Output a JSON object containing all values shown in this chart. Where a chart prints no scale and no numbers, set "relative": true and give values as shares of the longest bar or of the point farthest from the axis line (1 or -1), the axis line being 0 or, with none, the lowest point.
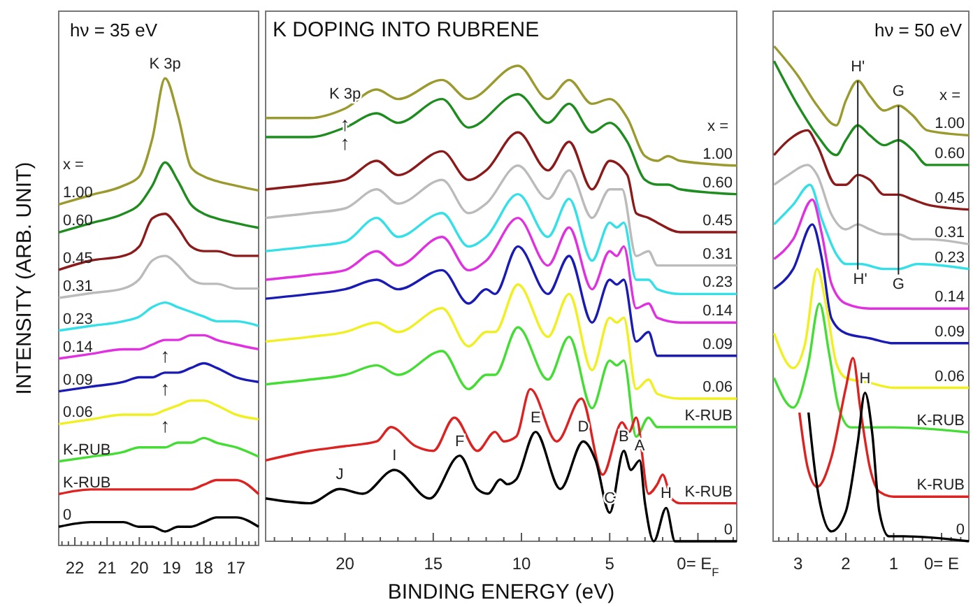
{
  "chart_data": [
    {
      "type": "line",
      "relative": true,
      "title": "hν = 35 eV",
      "ylabel": "INTENSITY (ARB. UNIT)",
      "xlim": [
        22.5,
        16.3
      ],
      "xticks": [
        {
          "value": 22.4,
          "label": null
        },
        {
          "value": 22.2,
          "label": null
        },
        22,
        {
          "value": 21.8,
          "label": null
        },
        {
          "value": 21.6,
          "label": null
        },
        {
          "value": 21.4,
          "label": null
        },
        {
          "value": 21.2,
          "label": null
        },
        21,
        {
          "value": 20.8,
          "label": null
        },
        {
          "value": 20.6,
          "label": null
        },
        {
          "value": 20.4,
          "label": null
        },
        {
          "value": 20.2,
          "label": null
        },
        20,
        {
          "value": 19.8,
          "label": null
        },
        {
          "value": 19.6,
          "label": null
        },
        {
          "value": 19.4,
          "label": null
        },
        {
          "value": 19.2,
          "label": null
        },
        19,
        {
          "value": 18.8,
          "label": null
        },
        {
          "value": 18.6,
          "label": null
        },
        {
          "value": 18.4,
          "label": null
        },
        {
          "value": 18.2,
          "label": null
        },
        18,
        {
          "value": 17.8,
          "label": null
        },
        {
          "value": 17.6,
          "label": null
        },
        {
          "value": 17.4,
          "label": null
        },
        {
          "value": 17.2,
          "label": null
        },
        17,
        {
          "value": 16.8,
          "label": null
        },
        {
          "value": 16.6,
          "label": null
        },
        {
          "value": 16.4,
          "label": null
        }
      ],
      "annotations": [
        "x =",
        {
          "text": "K 3p",
          "x": 19.2,
          "y": 1.0
        },
        {
          "text": "↑",
          "x": 19.2,
          "y": 0.44
        },
        {
          "text": "↑",
          "x": 19.2,
          "y": 0.37
        },
        {
          "text": "↑",
          "x": 19.2,
          "y": 0.29
        }
      ],
      "series": [
        {
          "name": "1.00",
          "color": "#9a9a2e",
          "x": [
            22.5,
            21.5,
            20.5,
            20.0,
            19.6,
            19.2,
            18.8,
            18.4,
            18.0,
            17.6,
            17.0,
            16.3
          ],
          "values": [
            0.73,
            0.75,
            0.77,
            0.79,
            0.87,
            1.0,
            0.92,
            0.81,
            0.79,
            0.78,
            0.77,
            0.76
          ]
        },
        {
          "name": "0.60",
          "color": "#1e8c1e",
          "x": [
            22.5,
            21.5,
            20.5,
            20.0,
            19.6,
            19.2,
            18.8,
            18.4,
            18.0,
            17.6,
            17.0,
            16.3
          ],
          "values": [
            0.67,
            0.69,
            0.71,
            0.73,
            0.77,
            0.82,
            0.78,
            0.73,
            0.71,
            0.7,
            0.69,
            0.68
          ]
        },
        {
          "name": "0.45",
          "color": "#8b1a1a",
          "x": [
            22.5,
            21.5,
            20.5,
            20.0,
            19.6,
            19.2,
            18.8,
            18.4,
            18.0,
            17.6,
            17.0,
            16.3
          ],
          "values": [
            0.59,
            0.61,
            0.62,
            0.64,
            0.7,
            0.71,
            0.68,
            0.64,
            0.63,
            0.63,
            0.62,
            0.62
          ]
        },
        {
          "name": "0.31",
          "color": "#bbbbbb",
          "x": [
            22.5,
            21.5,
            20.5,
            20.0,
            19.6,
            19.2,
            18.8,
            18.4,
            18.0,
            17.6,
            17.0,
            16.3
          ],
          "values": [
            0.53,
            0.54,
            0.55,
            0.57,
            0.61,
            0.62,
            0.6,
            0.57,
            0.56,
            0.56,
            0.55,
            0.55
          ]
        },
        {
          "name": "0.23",
          "color": "#33e0e8",
          "x": [
            22.5,
            21.5,
            20.5,
            20.0,
            19.6,
            19.2,
            18.8,
            18.4,
            18.0,
            17.6,
            17.0,
            16.3
          ],
          "values": [
            0.46,
            0.47,
            0.48,
            0.49,
            0.51,
            0.52,
            0.51,
            0.5,
            0.49,
            0.48,
            0.48,
            0.47
          ]
        },
        {
          "name": "0.14",
          "color": "#e030e0",
          "x": [
            22.5,
            21.5,
            20.5,
            20.0,
            19.6,
            19.2,
            18.8,
            18.4,
            18.0,
            17.6,
            17.0,
            16.3
          ],
          "values": [
            0.4,
            0.41,
            0.42,
            0.42,
            0.43,
            0.44,
            0.44,
            0.45,
            0.45,
            0.44,
            0.43,
            0.42
          ]
        },
        {
          "name": "0.09",
          "color": "#1a1ab4",
          "x": [
            22.5,
            21.5,
            20.5,
            20.0,
            19.6,
            19.2,
            18.8,
            18.4,
            18.0,
            17.6,
            17.0,
            16.3
          ],
          "values": [
            0.33,
            0.34,
            0.35,
            0.36,
            0.36,
            0.37,
            0.37,
            0.38,
            0.39,
            0.38,
            0.36,
            0.35
          ]
        },
        {
          "name": "0.06",
          "color": "#f0f020",
          "x": [
            22.5,
            21.5,
            20.5,
            20.0,
            19.6,
            19.2,
            18.8,
            18.4,
            18.0,
            17.6,
            17.0,
            16.3
          ],
          "values": [
            0.26,
            0.27,
            0.28,
            0.28,
            0.28,
            0.29,
            0.3,
            0.31,
            0.31,
            0.3,
            0.28,
            0.27
          ]
        },
        {
          "name": "K-RUB",
          "color": "#44dd33",
          "x": [
            22.5,
            21.5,
            20.5,
            20.0,
            19.6,
            19.2,
            18.8,
            18.4,
            18.0,
            17.6,
            17.0,
            16.3
          ],
          "values": [
            0.18,
            0.19,
            0.2,
            0.21,
            0.21,
            0.21,
            0.22,
            0.22,
            0.23,
            0.22,
            0.21,
            0.19
          ]
        },
        {
          "name": "K-RUB",
          "color": "#dd2222",
          "x": [
            22.5,
            21.5,
            20.5,
            20.0,
            19.6,
            19.2,
            18.8,
            18.4,
            18.0,
            17.6,
            17.0,
            16.3
          ],
          "values": [
            0.11,
            0.12,
            0.12,
            0.12,
            0.12,
            0.12,
            0.12,
            0.12,
            0.13,
            0.14,
            0.14,
            0.11
          ]
        },
        {
          "name": "0",
          "color": "#000000",
          "x": [
            22.5,
            21.5,
            20.5,
            20.0,
            19.6,
            19.2,
            18.8,
            18.4,
            18.0,
            17.6,
            17.0,
            16.3
          ],
          "values": [
            0.04,
            0.05,
            0.05,
            0.04,
            0.04,
            0.03,
            0.04,
            0.04,
            0.05,
            0.06,
            0.06,
            0.04
          ]
        }
      ]
    },
    {
      "type": "line",
      "relative": true,
      "title": "K DOPING INTO RUBRENE",
      "xlabel": "BINDING ENERGY (eV)",
      "xlim": [
        24.5,
        -2.2
      ],
      "xticks": [
        {
          "value": 24,
          "label": null
        },
        {
          "value": 23,
          "label": null
        },
        {
          "value": 22,
          "label": null
        },
        {
          "value": 21,
          "label": null
        },
        20,
        {
          "value": 19,
          "label": null
        },
        {
          "value": 18,
          "label": null
        },
        {
          "value": 17,
          "label": null
        },
        {
          "value": 16,
          "label": null
        },
        15,
        {
          "value": 14,
          "label": null
        },
        {
          "value": 13,
          "label": null
        },
        {
          "value": 12,
          "label": null
        },
        {
          "value": 11,
          "label": null
        },
        10,
        {
          "value": 9,
          "label": null
        },
        {
          "value": 8,
          "label": null
        },
        {
          "value": 7,
          "label": null
        },
        {
          "value": 6,
          "label": null
        },
        5,
        {
          "value": 4,
          "label": null
        },
        {
          "value": 3,
          "label": null
        },
        {
          "value": 2,
          "label": null
        },
        {
          "value": 1,
          "label": null
        },
        {
          "value": 0,
          "label": "0= E$_{F}$"
        },
        {
          "value": -1,
          "label": null
        },
        {
          "value": -2,
          "label": null
        }
      ],
      "annotations": [
        "x =",
        {
          "text": "K 3p",
          "x": 20,
          "y": 0.91
        },
        {
          "text": "↑",
          "x": 20,
          "y": 0.91
        },
        {
          "text": "↑",
          "x": 20,
          "y": 0.87
        },
        {
          "text": "J",
          "x": 20.3,
          "y": 0.11
        },
        {
          "text": "I",
          "x": 17.2,
          "y": 0.15
        },
        {
          "text": "F",
          "x": 13.5,
          "y": 0.18
        },
        {
          "text": "E",
          "x": 9.2,
          "y": 0.23
        },
        {
          "text": "D",
          "x": 6.5,
          "y": 0.21
        },
        {
          "text": "C",
          "x": 5.0,
          "y": 0.06
        },
        {
          "text": "B",
          "x": 4.2,
          "y": 0.19
        },
        {
          "text": "A",
          "x": 3.3,
          "y": 0.17
        },
        {
          "text": "H",
          "x": 1.8,
          "y": 0.07
        }
      ],
      "series": [
        {
          "name": "1.00",
          "color": "#9a9a2e",
          "x": [
            24.5,
            22,
            20,
            18.2,
            17,
            14.5,
            13,
            10.2,
            8.5,
            7.3,
            6,
            5,
            4,
            3,
            2.3,
            1.7,
            1,
            -2.2
          ],
          "values": [
            0.89,
            0.89,
            0.91,
            0.95,
            0.93,
            0.97,
            0.93,
            1.0,
            0.93,
            0.97,
            0.92,
            0.93,
            0.89,
            0.81,
            0.8,
            0.81,
            0.8,
            0.79
          ]
        },
        {
          "name": "0.60",
          "color": "#1e8c1e",
          "x": [
            24.5,
            22,
            20,
            18.2,
            17,
            14.5,
            13,
            10.2,
            8.5,
            7.3,
            6,
            5,
            4,
            3,
            2.3,
            1.7,
            1,
            -2.2
          ],
          "values": [
            0.85,
            0.85,
            0.87,
            0.9,
            0.88,
            0.93,
            0.87,
            0.94,
            0.88,
            0.92,
            0.86,
            0.88,
            0.84,
            0.76,
            0.75,
            0.75,
            0.74,
            0.73
          ]
        },
        {
          "name": "0.45",
          "color": "#8b1a1a",
          "x": [
            24.5,
            22,
            20,
            18.2,
            17,
            14.5,
            13,
            12,
            10.2,
            8.5,
            7.3,
            6,
            5,
            4,
            3.5,
            2.8,
            2.3,
            1,
            -2.2
          ],
          "values": [
            0.74,
            0.75,
            0.76,
            0.8,
            0.77,
            0.82,
            0.76,
            0.78,
            0.86,
            0.78,
            0.84,
            0.74,
            0.8,
            0.77,
            0.69,
            0.68,
            0.67,
            0.65,
            0.65
          ]
        },
        {
          "name": "0.31",
          "color": "#bbbbbb",
          "x": [
            24.5,
            22,
            20,
            18.2,
            17,
            14.5,
            13,
            12,
            10.2,
            8.5,
            7.3,
            6,
            5,
            4.3,
            3.5,
            2.8,
            2.3,
            1,
            -2.2
          ],
          "values": [
            0.68,
            0.69,
            0.7,
            0.74,
            0.71,
            0.76,
            0.69,
            0.71,
            0.79,
            0.72,
            0.78,
            0.68,
            0.74,
            0.74,
            0.6,
            0.61,
            0.58,
            0.58,
            0.58
          ]
        },
        {
          "name": "0.23",
          "color": "#33e0e8",
          "x": [
            24.5,
            22,
            20,
            18.2,
            17,
            14.5,
            13,
            12,
            10.2,
            8.5,
            7.3,
            6,
            5,
            4.6,
            4.2,
            3.5,
            2.8,
            2.3,
            1,
            -2.2
          ],
          "values": [
            0.61,
            0.62,
            0.63,
            0.68,
            0.64,
            0.69,
            0.62,
            0.64,
            0.73,
            0.64,
            0.72,
            0.59,
            0.67,
            0.66,
            0.67,
            0.55,
            0.55,
            0.53,
            0.52,
            0.52
          ]
        },
        {
          "name": "0.14",
          "color": "#e030e0",
          "x": [
            24.5,
            22,
            20,
            18.2,
            17,
            14.5,
            13,
            12,
            10.2,
            8.5,
            7.3,
            6,
            5,
            4.6,
            4.2,
            3.5,
            2.8,
            2.3,
            1,
            -2.2
          ],
          "values": [
            0.55,
            0.56,
            0.57,
            0.61,
            0.58,
            0.64,
            0.57,
            0.59,
            0.68,
            0.58,
            0.66,
            0.53,
            0.61,
            0.6,
            0.62,
            0.49,
            0.5,
            0.47,
            0.46,
            0.46
          ]
        },
        {
          "name": "0.09",
          "color": "#1a1ab4",
          "x": [
            24.5,
            22,
            20,
            18.2,
            17,
            14.5,
            13,
            12,
            11.5,
            10.2,
            8.5,
            7.3,
            6,
            5,
            4.6,
            4.2,
            3.5,
            2.8,
            2.3,
            1,
            -2.2
          ],
          "values": [
            0.51,
            0.52,
            0.53,
            0.55,
            0.53,
            0.57,
            0.5,
            0.53,
            0.52,
            0.62,
            0.52,
            0.6,
            0.46,
            0.55,
            0.54,
            0.55,
            0.42,
            0.44,
            0.39,
            0.39,
            0.39
          ]
        },
        {
          "name": "0.06",
          "color": "#f0f020",
          "x": [
            24.5,
            22,
            20,
            18.2,
            17,
            14.5,
            13,
            12,
            11.5,
            10.2,
            8.5,
            7.3,
            6,
            5,
            4.6,
            4.2,
            3.5,
            2.8,
            2.3,
            1,
            -2.2
          ],
          "values": [
            0.42,
            0.43,
            0.44,
            0.46,
            0.44,
            0.49,
            0.41,
            0.44,
            0.44,
            0.54,
            0.43,
            0.52,
            0.36,
            0.47,
            0.46,
            0.47,
            0.32,
            0.34,
            0.31,
            0.3,
            0.3
          ]
        },
        {
          "name": "K-RUB",
          "color": "#44dd33",
          "x": [
            24.5,
            22,
            20,
            18.2,
            17,
            14.5,
            13,
            12,
            11.5,
            10.2,
            8.5,
            7.3,
            6,
            5,
            4.6,
            4.2,
            3.5,
            2.8,
            2.3,
            1,
            -2.2
          ],
          "values": [
            0.33,
            0.34,
            0.35,
            0.37,
            0.35,
            0.4,
            0.32,
            0.35,
            0.35,
            0.45,
            0.34,
            0.43,
            0.28,
            0.38,
            0.37,
            0.38,
            0.22,
            0.26,
            0.24,
            0.24,
            0.24
          ]
        },
        {
          "name": "K-RUB",
          "color": "#dd2222",
          "x": [
            24.5,
            22,
            20,
            18.2,
            17.4,
            16,
            15,
            13.8,
            12.5,
            11.5,
            11,
            10.3,
            9.5,
            8,
            6.6,
            5.4,
            4.3,
            3.9,
            3.5,
            2.8,
            2.3,
            2.0,
            1.5,
            1,
            -2.2
          ],
          "values": [
            0.17,
            0.19,
            0.2,
            0.21,
            0.24,
            0.2,
            0.19,
            0.26,
            0.19,
            0.23,
            0.21,
            0.22,
            0.32,
            0.21,
            0.3,
            0.14,
            0.25,
            0.23,
            0.26,
            0.1,
            0.12,
            0.14,
            0.09,
            0.08,
            0.08
          ]
        },
        {
          "name": "0",
          "color": "#000000",
          "x": [
            24.5,
            22,
            20.3,
            19,
            17.2,
            15.2,
            13.5,
            12.5,
            11.9,
            11.2,
            10.8,
            10.3,
            9.2,
            7.8,
            6.5,
            5.8,
            5.0,
            4.2,
            3.8,
            3.3,
            3.0,
            2.5,
            1.8,
            1.3,
            1,
            -2.2
          ],
          "values": [
            0.09,
            0.08,
            0.11,
            0.1,
            0.15,
            0.09,
            0.18,
            0.11,
            0.1,
            0.13,
            0.12,
            0.13,
            0.23,
            0.11,
            0.21,
            0.17,
            0.06,
            0.19,
            0.15,
            0.17,
            0.08,
            0.0,
            0.07,
            0.0,
            0.0,
            0.0
          ]
        }
      ]
    },
    {
      "type": "line",
      "relative": true,
      "title": "hν = 50 eV",
      "xlim": [
        3.52,
        -0.57
      ],
      "xticks": [
        {
          "value": 3.4,
          "label": null
        },
        {
          "value": 3.2,
          "label": null
        },
        3,
        {
          "value": 2.8,
          "label": null
        },
        {
          "value": 2.6,
          "label": null
        },
        {
          "value": 2.4,
          "label": null
        },
        {
          "value": 2.2,
          "label": null
        },
        2,
        {
          "value": 1.8,
          "label": null
        },
        {
          "value": 1.6,
          "label": null
        },
        {
          "value": 1.4,
          "label": null
        },
        {
          "value": 1.2,
          "label": null
        },
        1,
        {
          "value": 0.8,
          "label": null
        },
        {
          "value": 0.6,
          "label": null
        },
        {
          "value": 0.4,
          "label": null
        },
        {
          "value": 0.2,
          "label": null
        },
        {
          "value": 0,
          "label": "0= E"
        },
        {
          "value": -0.2,
          "label": null
        },
        {
          "value": -0.4,
          "label": null
        }
      ],
      "annotations": [
        "x =",
        {
          "text": "H'",
          "x": 1.75,
          "y": 0.93
        },
        {
          "text": "G",
          "x": 0.9,
          "y": 0.88
        },
        {
          "text": "H'",
          "x": 1.7,
          "y": 0.56
        },
        {
          "text": "G",
          "x": 0.9,
          "y": 0.55
        },
        {
          "text": "H",
          "x": 1.6,
          "y": 0.3
        }
      ],
      "series": [
        {
          "name": "1.00",
          "color": "#9a9a2e",
          "x": [
            3.5,
            3.0,
            2.6,
            2.2,
            2.0,
            1.75,
            1.5,
            1.2,
            0.9,
            0.6,
            0.3,
            -0.57
          ],
          "values": [
            1.0,
            0.94,
            0.88,
            0.84,
            0.89,
            0.93,
            0.9,
            0.87,
            0.88,
            0.86,
            0.83,
            0.82
          ]
        },
        {
          "name": "0.60",
          "color": "#1e8c1e",
          "x": [
            3.5,
            3.0,
            2.6,
            2.2,
            2.0,
            1.75,
            1.5,
            1.2,
            0.9,
            0.6,
            0.3,
            -0.57
          ],
          "values": [
            0.97,
            0.88,
            0.82,
            0.78,
            0.81,
            0.84,
            0.82,
            0.8,
            0.81,
            0.79,
            0.76,
            0.76
          ]
        },
        {
          "name": "0.45",
          "color": "#8b1a1a",
          "x": [
            3.5,
            3.2,
            2.8,
            2.6,
            2.2,
            2.0,
            1.75,
            1.5,
            1.2,
            0.9,
            0.6,
            0.3,
            -0.57
          ],
          "values": [
            0.78,
            0.81,
            0.83,
            0.8,
            0.72,
            0.72,
            0.74,
            0.73,
            0.7,
            0.7,
            0.69,
            0.68,
            0.67
          ]
        },
        {
          "name": "0.31",
          "color": "#bbbbbb",
          "x": [
            3.5,
            3.2,
            2.8,
            2.6,
            2.3,
            2.0,
            1.75,
            1.5,
            1.2,
            0.9,
            0.6,
            0.3,
            -0.57
          ],
          "values": [
            0.72,
            0.74,
            0.76,
            0.74,
            0.66,
            0.63,
            0.64,
            0.63,
            0.62,
            0.62,
            0.61,
            0.61,
            0.6
          ]
        },
        {
          "name": "0.23",
          "color": "#33e0e8",
          "x": [
            3.5,
            3.1,
            2.75,
            2.5,
            2.2,
            2.0,
            1.7,
            1.2,
            0.9,
            0.5,
            -0.57
          ],
          "values": [
            0.64,
            0.68,
            0.72,
            0.65,
            0.58,
            0.56,
            0.56,
            0.55,
            0.55,
            0.56,
            0.55
          ]
        },
        {
          "name": "0.14",
          "color": "#e030e0",
          "x": [
            3.5,
            3.1,
            2.7,
            2.5,
            2.3,
            2.0,
            1.5,
            1.0,
            0.5,
            -0.57
          ],
          "values": [
            0.57,
            0.61,
            0.69,
            0.62,
            0.52,
            0.48,
            0.47,
            0.47,
            0.47,
            0.47
          ]
        },
        {
          "name": "0.09",
          "color": "#1a1ab4",
          "x": [
            3.5,
            3.1,
            2.7,
            2.5,
            2.3,
            2.0,
            1.5,
            1.0,
            0.5,
            -0.57
          ],
          "values": [
            0.51,
            0.55,
            0.64,
            0.57,
            0.45,
            0.42,
            0.41,
            0.4,
            0.4,
            0.4
          ]
        },
        {
          "name": "0.06",
          "color": "#f0f020",
          "x": [
            3.5,
            3.1,
            2.85,
            2.6,
            2.4,
            2.2,
            2.0,
            1.5,
            1.0,
            -0.57
          ],
          "values": [
            0.42,
            0.35,
            0.4,
            0.55,
            0.47,
            0.36,
            0.33,
            0.32,
            0.31,
            0.31
          ]
        },
        {
          "name": "K-RUB",
          "color": "#44dd33",
          "x": [
            3.5,
            3.1,
            2.8,
            2.55,
            2.35,
            2.15,
            1.9,
            1.5,
            1.0,
            -0.57
          ],
          "values": [
            0.33,
            0.27,
            0.35,
            0.48,
            0.38,
            0.27,
            0.23,
            0.23,
            0.23,
            0.22
          ]
        },
        {
          "name": "K-RUB",
          "color": "#dd2222",
          "x": [
            2.97,
            2.8,
            2.6,
            2.3,
            2.0,
            1.85,
            1.7,
            1.5,
            1.3,
            1.0,
            -0.57
          ],
          "values": [
            0.26,
            0.15,
            0.11,
            0.17,
            0.31,
            0.37,
            0.27,
            0.15,
            0.1,
            0.09,
            0.09
          ]
        },
        {
          "name": "0",
          "color": "#000000",
          "x": [
            2.78,
            2.6,
            2.3,
            2.0,
            1.75,
            1.6,
            1.45,
            1.3,
            1.1,
            0.8,
            -0.57
          ],
          "values": [
            0.26,
            0.11,
            0.02,
            0.06,
            0.2,
            0.3,
            0.22,
            0.06,
            0.01,
            0.01,
            0.0
          ]
        }
      ]
    }
  ]
}
